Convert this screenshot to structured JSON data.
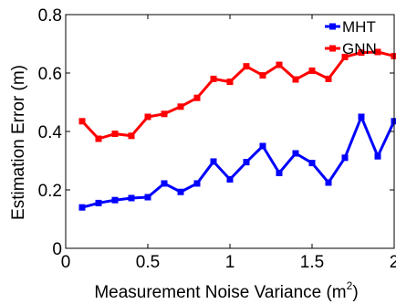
{
  "chart_data": {
    "type": "line",
    "xlabel_main": "Measurement Noise Variance (m",
    "xlabel_sup": "2",
    "xlabel_close": ")",
    "ylabel": "Estimation Error (m)",
    "xlim": [
      0,
      2
    ],
    "ylim": [
      0,
      0.8
    ],
    "xticks": [
      0,
      0.5,
      1,
      1.5,
      2
    ],
    "yticks": [
      0,
      0.2,
      0.4,
      0.6,
      0.8
    ],
    "xtick_labels": [
      "0",
      "0.5",
      "1",
      "1.5",
      "2"
    ],
    "ytick_labels": [
      "0",
      "0.2",
      "0.4",
      "0.6",
      "0.8"
    ],
    "legend_position": "top-right",
    "x": [
      0.1,
      0.2,
      0.3,
      0.4,
      0.5,
      0.6,
      0.7,
      0.8,
      0.9,
      1.0,
      1.1,
      1.2,
      1.3,
      1.4,
      1.5,
      1.6,
      1.7,
      1.8,
      1.9,
      2.0
    ],
    "series": [
      {
        "name": "MHT",
        "color": "#0000ff",
        "values": [
          0.14,
          0.155,
          0.165,
          0.172,
          0.175,
          0.222,
          0.193,
          0.222,
          0.297,
          0.236,
          0.295,
          0.35,
          0.258,
          0.325,
          0.292,
          0.225,
          0.31,
          0.45,
          0.315,
          0.435
        ]
      },
      {
        "name": "GNN",
        "color": "#ff0000",
        "values": [
          0.435,
          0.375,
          0.392,
          0.385,
          0.45,
          0.46,
          0.485,
          0.515,
          0.58,
          0.57,
          0.623,
          0.592,
          0.628,
          0.578,
          0.608,
          0.58,
          0.655,
          0.67,
          0.672,
          0.658
        ]
      }
    ]
  }
}
